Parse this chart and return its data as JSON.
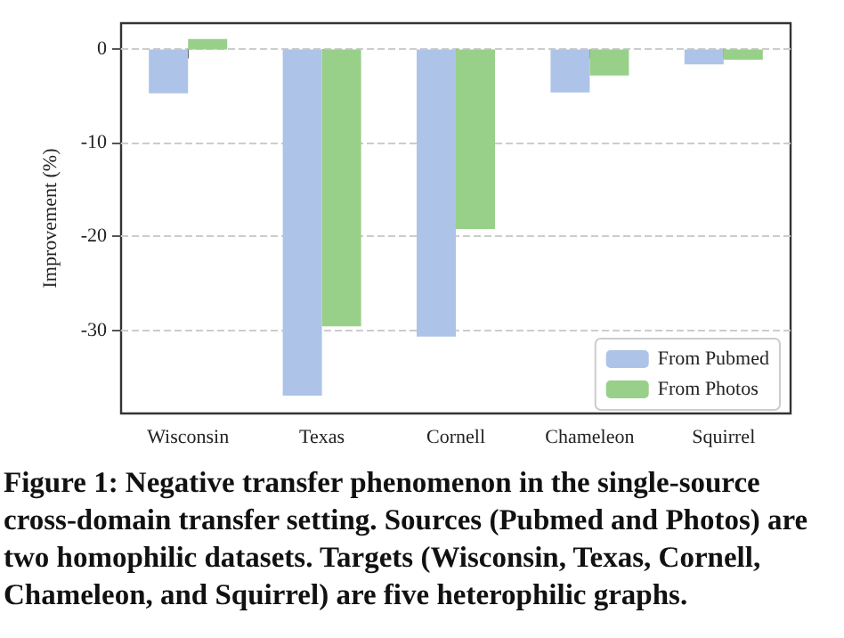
{
  "chart_data": {
    "type": "bar",
    "categories": [
      "Wisconsin",
      "Texas",
      "Cornell",
      "Chameleon",
      "Squirrel"
    ],
    "ylabel": "Improvement (%)",
    "series": [
      {
        "name": "From Pubmed",
        "color": "#aec3e8",
        "values": [
          -4.7,
          -37.0,
          -30.7,
          -4.6,
          -1.6
        ]
      },
      {
        "name": "From Photos",
        "color": "#98d08a",
        "values": [
          1.1,
          -29.6,
          -19.2,
          -2.8,
          -1.1
        ]
      }
    ],
    "ylim": [
      -38.9,
      2.8
    ],
    "yticks": [
      0,
      -10,
      -20,
      -30
    ],
    "grid": "y",
    "legend": "bottom right",
    "annotations": [
      "Figure 1: Negative transfer phenomenon in the single-source cross-domain transfer setting. Sources (Pubmed and Photos) are two homophilic datasets. Targets (Wisconsin, Texas, Cornell, Chameleon, and Squirrel) are five heterophilic graphs."
    ]
  }
}
